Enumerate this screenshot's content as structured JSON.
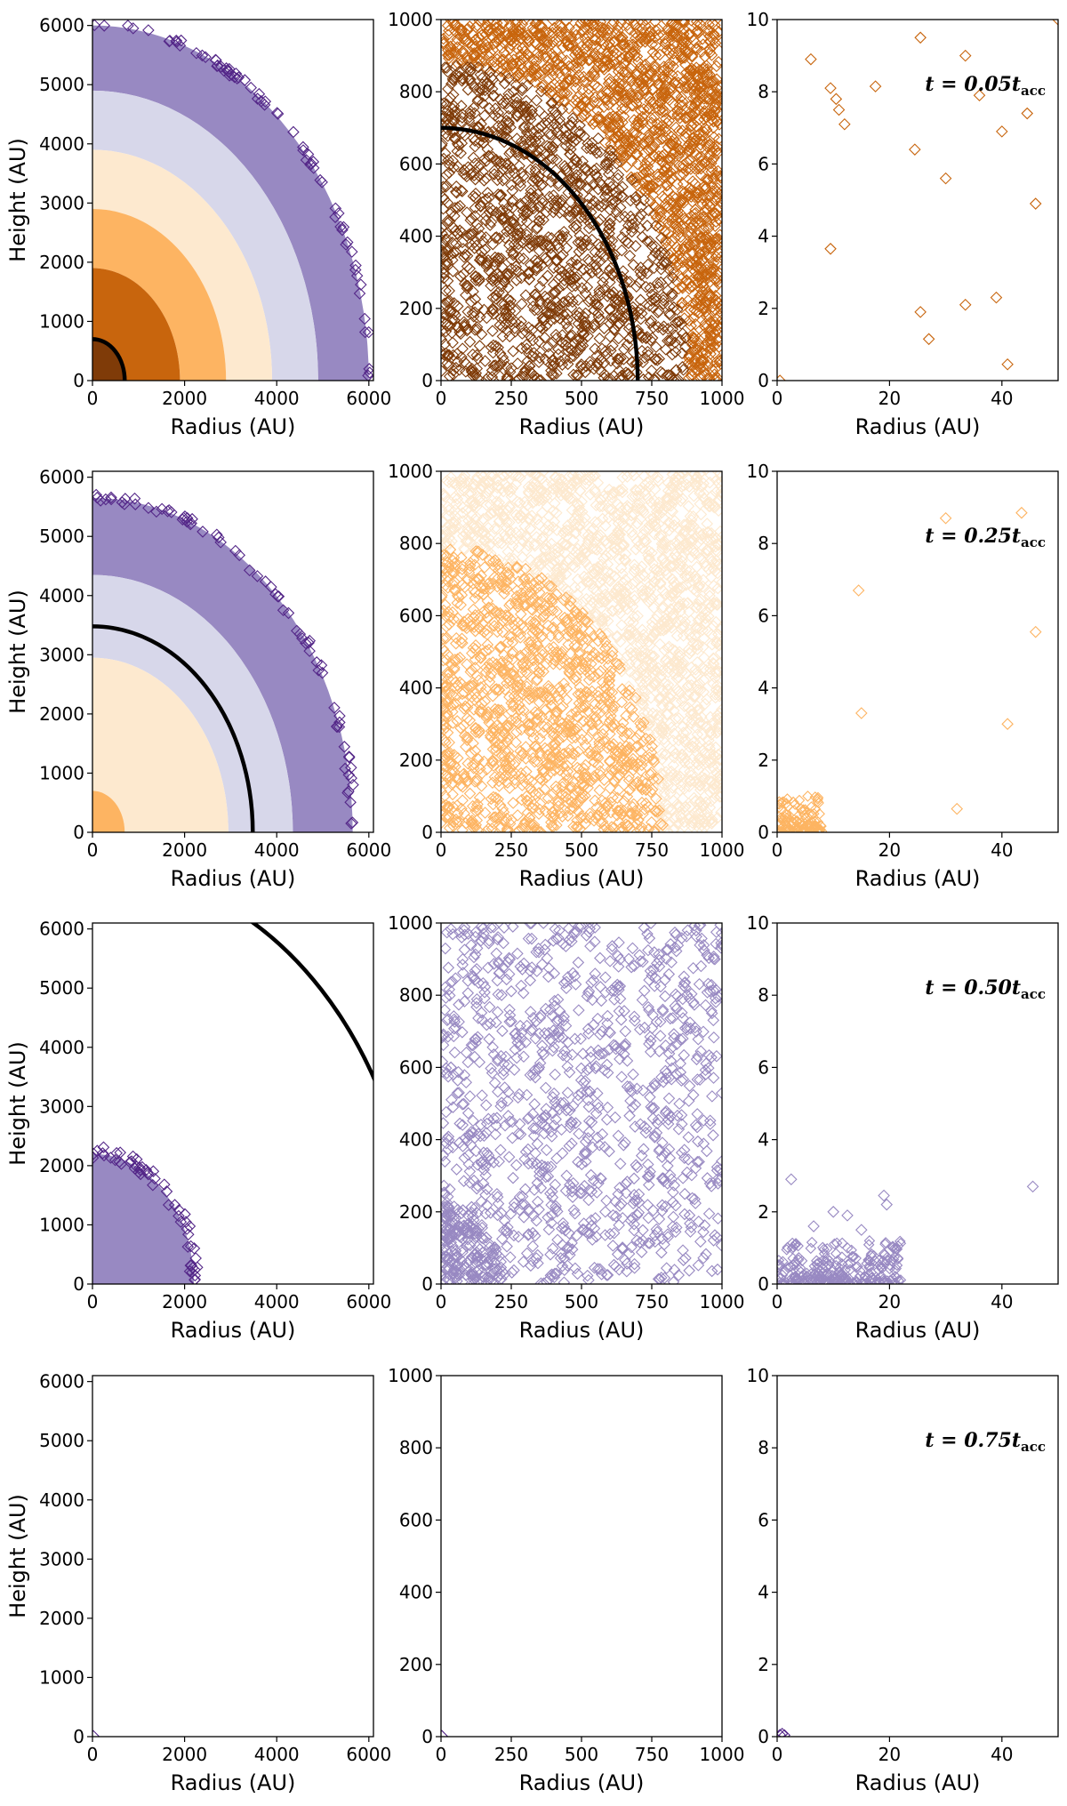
{
  "colors": {
    "c0": "#7f3b08",
    "c1": "#c8650d",
    "c2": "#fdb462",
    "c3": "#fde9cf",
    "c4": "#d7d7ea",
    "c5": "#9889c2",
    "c6": "#542788",
    "curve": "#000000"
  },
  "chart_data": [
    {
      "type": "scatter",
      "row": 1,
      "col": 1,
      "xlabel": "Radius (AU)",
      "ylabel": "Height (AU)",
      "xlim": [
        0,
        6100
      ],
      "ylim": [
        0,
        6100
      ],
      "xticks": [
        0,
        2000,
        4000,
        6000
      ],
      "yticks": [
        0,
        1000,
        2000,
        3000,
        4000,
        5000,
        6000
      ],
      "zones": [
        {
          "r0": 4900,
          "r1": 6000,
          "color": "c5"
        },
        {
          "r0": 3900,
          "r1": 4900,
          "color": "c4"
        },
        {
          "r0": 2900,
          "r1": 3900,
          "color": "c3"
        },
        {
          "r0": 1900,
          "r1": 2900,
          "color": "c2"
        },
        {
          "r0": 700,
          "r1": 1900,
          "color": "c1"
        },
        {
          "r0": 0,
          "r1": 700,
          "color": "c0"
        }
      ],
      "edge_markers": {
        "r0": 5950,
        "r1": 6060,
        "color": "c6",
        "count": 70
      },
      "curve_radius": 700
    },
    {
      "type": "scatter",
      "row": 1,
      "col": 2,
      "xlabel": "Radius (AU)",
      "ylabel": "",
      "xlim": [
        0,
        1000
      ],
      "ylim": [
        0,
        1000
      ],
      "xticks": [
        0,
        250,
        500,
        750,
        1000
      ],
      "yticks": [
        0,
        200,
        400,
        600,
        800,
        1000
      ],
      "zones": [
        {
          "r0": 880,
          "r1": 1500,
          "color": "c1",
          "count": 1500
        },
        {
          "r0": 0,
          "r1": 880,
          "color": "c0",
          "count": 1400
        }
      ],
      "curve_radius": 700
    },
    {
      "type": "scatter",
      "row": 1,
      "col": 3,
      "xlabel": "Radius (AU)",
      "ylabel": "",
      "xlim": [
        0,
        50
      ],
      "ylim": [
        0,
        10
      ],
      "xticks": [
        0,
        20,
        40
      ],
      "yticks": [
        0,
        2,
        4,
        6,
        8,
        10
      ],
      "annotation": "t = 0.05",
      "annotation_sub": "acc",
      "marker_color": "c1",
      "points": [
        [
          6,
          8.9
        ],
        [
          9.5,
          8.1
        ],
        [
          10.5,
          7.8
        ],
        [
          11,
          7.5
        ],
        [
          12,
          7.1
        ],
        [
          17.5,
          8.15
        ],
        [
          25.5,
          9.5
        ],
        [
          33.5,
          9.0
        ],
        [
          36,
          7.9
        ],
        [
          44.5,
          7.4
        ],
        [
          24.5,
          6.4
        ],
        [
          30,
          5.6
        ],
        [
          40,
          6.9
        ],
        [
          46,
          4.9
        ],
        [
          9.5,
          3.65
        ],
        [
          25.5,
          1.9
        ],
        [
          27,
          1.15
        ],
        [
          33.5,
          2.1
        ],
        [
          39,
          2.3
        ],
        [
          41,
          0.45
        ],
        [
          50,
          10.0
        ],
        [
          0.5,
          0.0
        ]
      ]
    },
    {
      "type": "scatter",
      "row": 2,
      "col": 1,
      "xlabel": "Radius (AU)",
      "ylabel": "Height (AU)",
      "xlim": [
        0,
        6100
      ],
      "ylim": [
        0,
        6100
      ],
      "xticks": [
        0,
        2000,
        4000,
        6000
      ],
      "yticks": [
        0,
        1000,
        2000,
        3000,
        4000,
        5000,
        6000
      ],
      "zones": [
        {
          "r0": 4350,
          "r1": 5650,
          "color": "c5"
        },
        {
          "r0": 2950,
          "r1": 4350,
          "color": "c4"
        },
        {
          "r0": 700,
          "r1": 2950,
          "color": "c3"
        },
        {
          "r0": 0,
          "r1": 700,
          "color": "c2"
        }
      ],
      "edge_markers": {
        "r0": 5580,
        "r1": 5720,
        "color": "c6",
        "count": 70
      },
      "curve_radius": 3480
    },
    {
      "type": "scatter",
      "row": 2,
      "col": 2,
      "xlabel": "Radius (AU)",
      "ylabel": "",
      "xlim": [
        0,
        1000
      ],
      "ylim": [
        0,
        1000
      ],
      "xticks": [
        0,
        250,
        500,
        750,
        1000
      ],
      "yticks": [
        0,
        200,
        400,
        600,
        800,
        1000
      ],
      "zones": [
        {
          "r0": 780,
          "r1": 1500,
          "color": "c3",
          "count": 1500
        },
        {
          "r0": 0,
          "r1": 790,
          "color": "c2",
          "count": 1300
        }
      ]
    },
    {
      "type": "scatter",
      "row": 2,
      "col": 3,
      "xlabel": "Radius (AU)",
      "ylabel": "",
      "xlim": [
        0,
        50
      ],
      "ylim": [
        0,
        10
      ],
      "xticks": [
        0,
        20,
        40
      ],
      "yticks": [
        0,
        2,
        4,
        6,
        8,
        10
      ],
      "annotation": "t = 0.25",
      "annotation_sub": "acc",
      "marker_color": "c2",
      "points": [
        [
          30,
          8.7
        ],
        [
          43.5,
          8.85
        ],
        [
          14.5,
          6.7
        ],
        [
          46,
          5.55
        ],
        [
          15,
          3.3
        ],
        [
          41,
          3.0
        ],
        [
          32,
          0.65
        ]
      ],
      "cluster": {
        "x_max": 8,
        "y_max": 1.0,
        "count": 120,
        "color": "c2"
      }
    },
    {
      "type": "scatter",
      "row": 3,
      "col": 1,
      "xlabel": "Radius (AU)",
      "ylabel": "Height (AU)",
      "xlim": [
        0,
        6100
      ],
      "ylim": [
        0,
        6100
      ],
      "xticks": [
        0,
        2000,
        4000,
        6000
      ],
      "yticks": [
        0,
        1000,
        2000,
        3000,
        4000,
        5000,
        6000
      ],
      "zones": [
        {
          "r0": 0,
          "r1": 2200,
          "color": "c5"
        }
      ],
      "edge_markers": {
        "r0": 2120,
        "r1": 2330,
        "color": "c6",
        "count": 55
      },
      "curve_radius": 7030
    },
    {
      "type": "scatter",
      "row": 3,
      "col": 2,
      "xlabel": "Radius (AU)",
      "ylabel": "",
      "xlim": [
        0,
        1000
      ],
      "ylim": [
        0,
        1000
      ],
      "xticks": [
        0,
        250,
        500,
        750,
        1000
      ],
      "yticks": [
        0,
        200,
        400,
        600,
        800,
        1000
      ],
      "zones": [
        {
          "r0": 0,
          "r1": 1500,
          "color": "c5",
          "count": 1100
        },
        {
          "r0": 0,
          "r1": 220,
          "color": "c5",
          "count": 250
        }
      ]
    },
    {
      "type": "scatter",
      "row": 3,
      "col": 3,
      "xlabel": "Radius (AU)",
      "ylabel": "",
      "xlim": [
        0,
        50
      ],
      "ylim": [
        0,
        10
      ],
      "xticks": [
        0,
        20,
        40
      ],
      "yticks": [
        0,
        2,
        4,
        6,
        8,
        10
      ],
      "annotation": "t = 0.50",
      "annotation_sub": "acc",
      "marker_color": "c5",
      "points": [
        [
          2.5,
          2.9
        ],
        [
          45.5,
          2.7
        ],
        [
          19,
          2.45
        ],
        [
          19.5,
          2.2
        ],
        [
          10,
          2.0
        ],
        [
          12.5,
          1.9
        ],
        [
          6.5,
          1.6
        ],
        [
          15,
          1.5
        ]
      ],
      "cluster": {
        "x_max": 22,
        "y_max": 1.2,
        "count": 260,
        "color": "c5"
      }
    },
    {
      "type": "scatter",
      "row": 4,
      "col": 1,
      "xlabel": "Radius (AU)",
      "ylabel": "Height (AU)",
      "xlim": [
        0,
        6100
      ],
      "ylim": [
        0,
        6100
      ],
      "xticks": [
        0,
        2000,
        4000,
        6000
      ],
      "yticks": [
        0,
        1000,
        2000,
        3000,
        4000,
        5000,
        6000
      ],
      "points": [
        [
          20,
          10
        ]
      ],
      "marker_color": "c6"
    },
    {
      "type": "scatter",
      "row": 4,
      "col": 2,
      "xlabel": "Radius (AU)",
      "ylabel": "",
      "xlim": [
        0,
        1000
      ],
      "ylim": [
        0,
        1000
      ],
      "xticks": [
        0,
        250,
        500,
        750,
        1000
      ],
      "yticks": [
        0,
        200,
        400,
        600,
        800,
        1000
      ],
      "points": [
        [
          3,
          2
        ]
      ],
      "marker_color": "c6"
    },
    {
      "type": "scatter",
      "row": 4,
      "col": 3,
      "xlabel": "Radius (AU)",
      "ylabel": "",
      "xlim": [
        0,
        50
      ],
      "ylim": [
        0,
        10
      ],
      "xticks": [
        0,
        20,
        40
      ],
      "yticks": [
        0,
        2,
        4,
        6,
        8,
        10
      ],
      "annotation": "t = 0.75",
      "annotation_sub": "acc",
      "marker_color": "c6",
      "points": [
        [
          0.5,
          0.05
        ],
        [
          0.9,
          0.08
        ],
        [
          1.3,
          0.04
        ]
      ]
    }
  ]
}
